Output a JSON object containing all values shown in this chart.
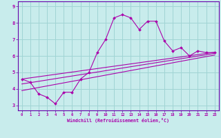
{
  "xlabel": "Windchill (Refroidissement éolien,°C)",
  "bg_color": "#c8ecec",
  "grid_color": "#a0d4d4",
  "line_color": "#aa00aa",
  "spine_color": "#6600aa",
  "xlim": [
    -0.5,
    23.5
  ],
  "ylim": [
    2.7,
    9.3
  ],
  "xticks": [
    0,
    1,
    2,
    3,
    4,
    5,
    6,
    7,
    8,
    9,
    10,
    11,
    12,
    13,
    14,
    15,
    16,
    17,
    18,
    19,
    20,
    21,
    22,
    23
  ],
  "yticks": [
    3,
    4,
    5,
    6,
    7,
    8,
    9
  ],
  "scatter_x": [
    0,
    1,
    2,
    3,
    4,
    5,
    6,
    7,
    8,
    9,
    10,
    11,
    12,
    13,
    14,
    15,
    16,
    17,
    18,
    19,
    20,
    21,
    22,
    23
  ],
  "scatter_y": [
    4.6,
    4.4,
    3.7,
    3.5,
    3.1,
    3.8,
    3.8,
    4.6,
    5.0,
    6.2,
    7.0,
    8.3,
    8.5,
    8.3,
    7.6,
    8.1,
    8.1,
    6.9,
    6.3,
    6.5,
    6.0,
    6.3,
    6.2,
    6.2
  ],
  "line1_x": [
    0,
    23
  ],
  "line1_y": [
    3.9,
    6.05
  ],
  "line2_x": [
    0,
    23
  ],
  "line2_y": [
    4.3,
    6.15
  ],
  "line3_x": [
    0,
    23
  ],
  "line3_y": [
    4.6,
    6.22
  ]
}
